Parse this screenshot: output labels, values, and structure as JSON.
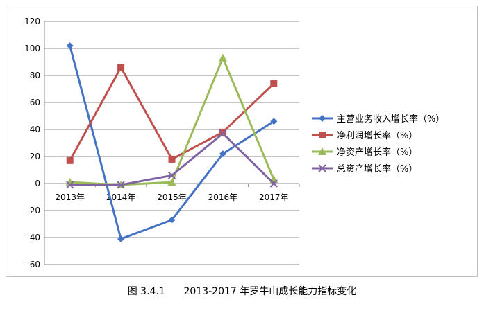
{
  "chart_data": {
    "type": "line",
    "categories": [
      "2013年",
      "2014年",
      "2015年",
      "2016年",
      "2017年"
    ],
    "ylim": [
      -60,
      120
    ],
    "yticks": [
      -60,
      -40,
      -20,
      0,
      20,
      40,
      60,
      80,
      100,
      120
    ],
    "grid": true,
    "legend_position": "right",
    "series": [
      {
        "name": "主营业务收入增长率（%）",
        "values": [
          102,
          -41,
          -27,
          22,
          46
        ],
        "color": "#4472C4",
        "marker": "diamond"
      },
      {
        "name": "净利润增长率（%）",
        "values": [
          17,
          86,
          18,
          38,
          74
        ],
        "color": "#C0504D",
        "marker": "square"
      },
      {
        "name": "净资产增长率（%）",
        "values": [
          1,
          -1,
          1,
          93,
          3
        ],
        "color": "#9BBB59",
        "marker": "triangle"
      },
      {
        "name": "总资产增长率（%）",
        "values": [
          -1,
          -1,
          6,
          37,
          0
        ],
        "color": "#8064A2",
        "marker": "x"
      }
    ]
  },
  "caption": "图 3.4.1      2013-2017 年罗牛山成长能力指标变化"
}
